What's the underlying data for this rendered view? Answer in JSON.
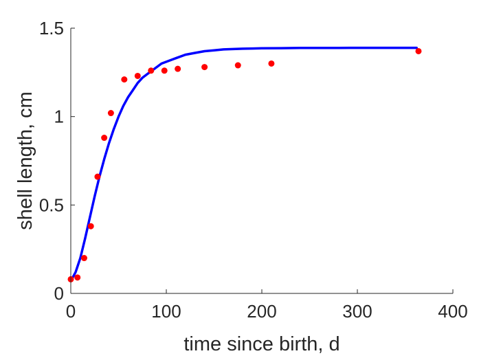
{
  "chart_data": {
    "type": "scatter",
    "xlabel": "time since birth, d",
    "ylabel": "shell length, cm",
    "xlim": [
      0,
      400
    ],
    "ylim": [
      0,
      1.5
    ],
    "xticks": [
      0,
      100,
      200,
      300,
      400
    ],
    "yticks": [
      0,
      0.5,
      1,
      1.5
    ],
    "xtick_labels": [
      "0",
      "100",
      "200",
      "300",
      "400"
    ],
    "ytick_labels": [
      "0",
      "0.5",
      "1",
      "1.5"
    ],
    "grid": false,
    "series": [
      {
        "kind": "points",
        "color": "#ff0000",
        "x": [
          0,
          7,
          14,
          21,
          28,
          35,
          42,
          56,
          70,
          84,
          98,
          112,
          140,
          175,
          210,
          364
        ],
        "y": [
          0.08,
          0.09,
          0.2,
          0.38,
          0.66,
          0.88,
          1.02,
          1.21,
          1.23,
          1.26,
          1.26,
          1.27,
          1.28,
          1.29,
          1.3,
          1.37
        ]
      },
      {
        "kind": "line",
        "color": "#0000ff",
        "x": [
          0,
          5,
          10,
          15,
          20,
          25,
          30,
          35,
          40,
          45,
          50,
          55,
          60,
          65,
          70,
          75,
          80,
          85,
          90,
          95,
          100,
          110,
          120,
          130,
          140,
          150,
          160,
          170,
          180,
          190,
          200,
          220,
          240,
          260,
          280,
          300,
          320,
          340,
          362
        ],
        "y": [
          0.07,
          0.12,
          0.2,
          0.31,
          0.43,
          0.55,
          0.66,
          0.76,
          0.85,
          0.93,
          1.0,
          1.06,
          1.11,
          1.15,
          1.19,
          1.22,
          1.24,
          1.26,
          1.28,
          1.3,
          1.31,
          1.33,
          1.35,
          1.36,
          1.37,
          1.375,
          1.38,
          1.382,
          1.384,
          1.385,
          1.386,
          1.387,
          1.388,
          1.388,
          1.388,
          1.389,
          1.389,
          1.389,
          1.389
        ]
      }
    ]
  }
}
